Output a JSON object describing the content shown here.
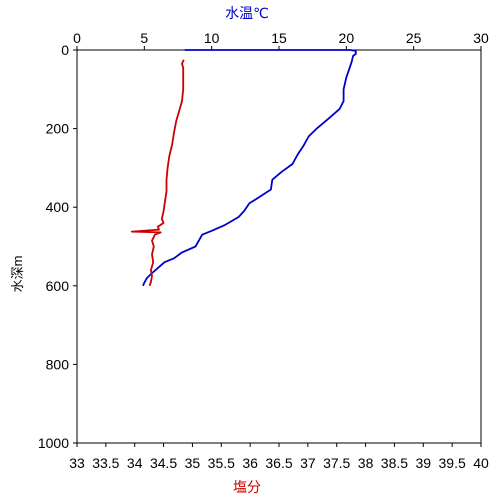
{
  "chart_data": {
    "type": "line",
    "x_top": {
      "label": "水温℃",
      "label_color": "#0000cc",
      "range": [
        0,
        30
      ],
      "ticks": [
        0,
        5,
        10,
        15,
        20,
        25,
        30
      ]
    },
    "x_bottom": {
      "label": "塩分",
      "label_color": "#cc0000",
      "range": [
        33,
        40
      ],
      "ticks": [
        "33",
        "33.5",
        "34",
        "34.5",
        "35",
        "35.5",
        "36",
        "36.5",
        "37",
        "37.5",
        "38",
        "38.5",
        "39",
        "39.5",
        "40"
      ]
    },
    "y": {
      "label": "水深m",
      "range": [
        0,
        1000
      ],
      "inverted": true,
      "ticks": [
        0,
        200,
        400,
        600,
        800,
        1000
      ]
    },
    "grid": false,
    "series": [
      {
        "axis": "top",
        "color": "#0000cc",
        "points": [
          [
            8,
            0
          ],
          [
            15.5,
            0
          ],
          [
            20.3,
            0
          ],
          [
            20.7,
            2
          ],
          [
            20.7,
            10
          ],
          [
            20.5,
            15
          ],
          [
            20.4,
            30
          ],
          [
            20.2,
            50
          ],
          [
            20.0,
            70
          ],
          [
            19.8,
            100
          ],
          [
            19.8,
            130
          ],
          [
            19.5,
            150
          ],
          [
            19.0,
            165
          ],
          [
            18.5,
            180
          ],
          [
            17.8,
            200
          ],
          [
            17.2,
            220
          ],
          [
            16.8,
            245
          ],
          [
            16.4,
            265
          ],
          [
            16.0,
            290
          ],
          [
            15.2,
            310
          ],
          [
            14.5,
            330
          ],
          [
            14.4,
            355
          ],
          [
            13.5,
            375
          ],
          [
            12.8,
            390
          ],
          [
            12.4,
            410
          ],
          [
            12.0,
            425
          ],
          [
            11.0,
            445
          ],
          [
            10.0,
            460
          ],
          [
            9.3,
            470
          ],
          [
            8.8,
            500
          ],
          [
            7.8,
            515
          ],
          [
            7.2,
            530
          ],
          [
            6.5,
            540
          ],
          [
            6.0,
            555
          ],
          [
            5.5,
            570
          ],
          [
            5.2,
            580
          ],
          [
            5.0,
            592
          ],
          [
            4.9,
            600
          ]
        ]
      },
      {
        "axis": "bottom",
        "color": "#cc0000",
        "points": [
          [
            34.85,
            25
          ],
          [
            34.82,
            35
          ],
          [
            34.84,
            45
          ],
          [
            34.84,
            100
          ],
          [
            34.82,
            130
          ],
          [
            34.77,
            155
          ],
          [
            34.72,
            180
          ],
          [
            34.68,
            210
          ],
          [
            34.65,
            240
          ],
          [
            34.6,
            270
          ],
          [
            34.57,
            300
          ],
          [
            34.55,
            330
          ],
          [
            34.55,
            360
          ],
          [
            34.52,
            390
          ],
          [
            34.5,
            410
          ],
          [
            34.47,
            430
          ],
          [
            34.5,
            440
          ],
          [
            34.4,
            450
          ],
          [
            34.42,
            457
          ],
          [
            33.95,
            462
          ],
          [
            34.45,
            464
          ],
          [
            34.35,
            470
          ],
          [
            34.3,
            485
          ],
          [
            34.33,
            500
          ],
          [
            34.3,
            520
          ],
          [
            34.32,
            540
          ],
          [
            34.28,
            560
          ],
          [
            34.3,
            575
          ],
          [
            34.28,
            590
          ],
          [
            34.26,
            600
          ]
        ]
      }
    ]
  }
}
